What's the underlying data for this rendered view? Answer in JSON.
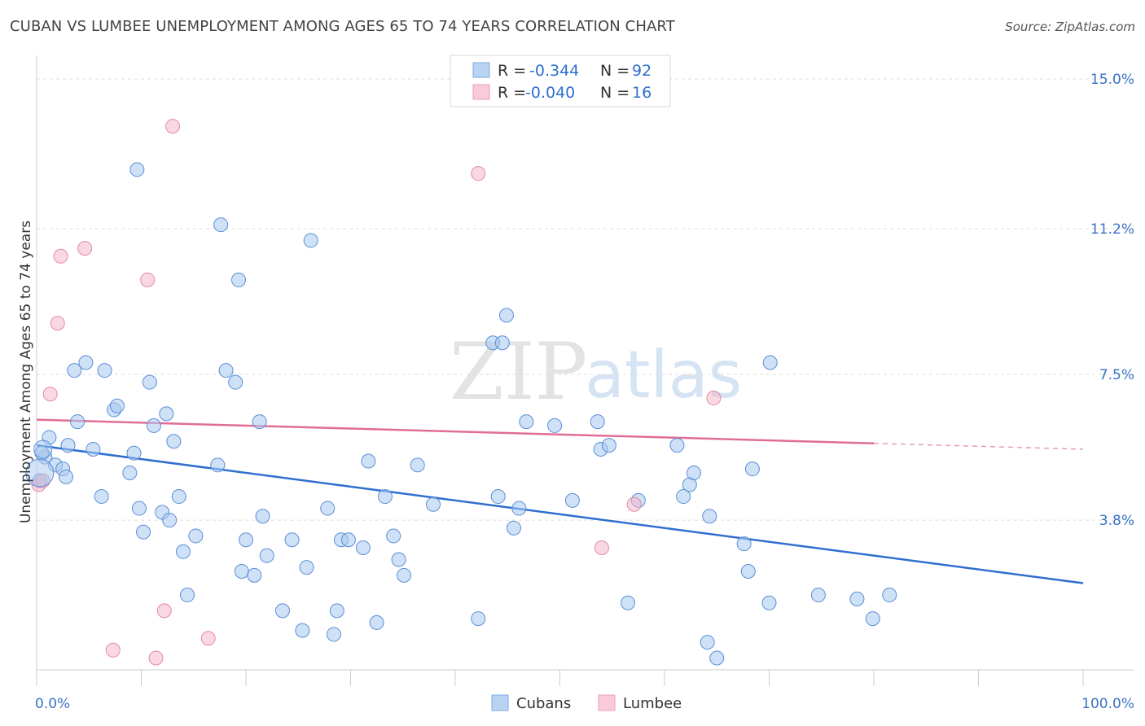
{
  "header": {
    "title": "CUBAN VS LUMBEE UNEMPLOYMENT AMONG AGES 65 TO 74 YEARS CORRELATION CHART",
    "source": "Source: ZipAtlas.com"
  },
  "legend": {
    "series": [
      {
        "r_label": "R = ",
        "r_value": "-0.344",
        "n_label": "N = ",
        "n_value": "92",
        "color": "#a8c8f0"
      },
      {
        "r_label": "R = ",
        "r_value": "-0.040",
        "n_label": "N = ",
        "n_value": "16",
        "color": "#f4b8cb"
      }
    ]
  },
  "bottom_legend": [
    {
      "label": "Cubans",
      "color": "#a8c8f0"
    },
    {
      "label": "Lumbee",
      "color": "#f4b8cb"
    }
  ],
  "watermark": {
    "zip": "ZIP",
    "atlas": "atlas"
  },
  "chart_data": {
    "type": "scatter",
    "title": "CUBAN VS LUMBEE UNEMPLOYMENT AMONG AGES 65 TO 74 YEARS CORRELATION CHART",
    "xlabel": "",
    "ylabel": "Unemployment Among Ages 65 to 74 years",
    "xlim": [
      0,
      100
    ],
    "ylim": [
      0,
      15
    ],
    "x_tick_labels": [
      "0.0%",
      "100.0%"
    ],
    "y_ticks": [
      3.8,
      7.5,
      11.2,
      15.0
    ],
    "y_tick_labels": [
      "3.8%",
      "7.5%",
      "11.2%",
      "15.0%"
    ],
    "grid": true,
    "series": [
      {
        "name": "Cubans",
        "color": "#a8c8f0",
        "stroke": "#5b8fd6",
        "trend": {
          "x": [
            0,
            100
          ],
          "y": [
            5.7,
            2.2
          ],
          "color": "#2f6fcf"
        },
        "points": [
          [
            0.3,
            4.8
          ],
          [
            0.8,
            5.4
          ],
          [
            1.2,
            5.9
          ],
          [
            1.8,
            5.2
          ],
          [
            2.5,
            5.1
          ],
          [
            2.8,
            4.9
          ],
          [
            3.0,
            5.7
          ],
          [
            3.6,
            7.6
          ],
          [
            4.7,
            7.8
          ],
          [
            5.4,
            5.6
          ],
          [
            3.9,
            6.3
          ],
          [
            6.5,
            7.6
          ],
          [
            6.2,
            4.4
          ],
          [
            7.4,
            6.6
          ],
          [
            7.7,
            6.7
          ],
          [
            8.9,
            5.0
          ],
          [
            9.3,
            5.5
          ],
          [
            9.6,
            12.7
          ],
          [
            9.8,
            4.1
          ],
          [
            10.2,
            3.5
          ],
          [
            10.8,
            7.3
          ],
          [
            11.2,
            6.2
          ],
          [
            12.0,
            4.0
          ],
          [
            12.4,
            6.5
          ],
          [
            12.7,
            3.8
          ],
          [
            13.1,
            5.8
          ],
          [
            13.6,
            4.4
          ],
          [
            14.0,
            3.0
          ],
          [
            14.4,
            1.9
          ],
          [
            15.2,
            3.4
          ],
          [
            17.3,
            5.2
          ],
          [
            17.6,
            11.3
          ],
          [
            18.1,
            7.6
          ],
          [
            19.0,
            7.3
          ],
          [
            19.3,
            9.9
          ],
          [
            19.6,
            2.5
          ],
          [
            20.0,
            3.3
          ],
          [
            20.8,
            2.4
          ],
          [
            21.3,
            6.3
          ],
          [
            21.6,
            3.9
          ],
          [
            22.0,
            2.9
          ],
          [
            23.5,
            1.5
          ],
          [
            24.4,
            3.3
          ],
          [
            25.4,
            1.0
          ],
          [
            25.8,
            2.6
          ],
          [
            26.2,
            10.9
          ],
          [
            27.8,
            4.1
          ],
          [
            28.4,
            0.9
          ],
          [
            28.7,
            1.5
          ],
          [
            29.1,
            3.3
          ],
          [
            29.8,
            3.3
          ],
          [
            31.2,
            3.1
          ],
          [
            31.7,
            5.3
          ],
          [
            32.5,
            1.2
          ],
          [
            33.3,
            4.4
          ],
          [
            34.1,
            3.4
          ],
          [
            34.6,
            2.8
          ],
          [
            35.1,
            2.4
          ],
          [
            36.4,
            5.2
          ],
          [
            37.9,
            4.2
          ],
          [
            42.2,
            1.3
          ],
          [
            43.6,
            8.3
          ],
          [
            44.1,
            4.4
          ],
          [
            44.5,
            8.3
          ],
          [
            44.9,
            9.0
          ],
          [
            45.6,
            3.6
          ],
          [
            46.1,
            4.1
          ],
          [
            46.8,
            6.3
          ],
          [
            49.5,
            6.2
          ],
          [
            51.2,
            4.3
          ],
          [
            53.6,
            6.3
          ],
          [
            53.9,
            5.6
          ],
          [
            54.7,
            5.7
          ],
          [
            56.5,
            1.7
          ],
          [
            57.5,
            4.3
          ],
          [
            61.2,
            5.7
          ],
          [
            61.8,
            4.4
          ],
          [
            62.4,
            4.7
          ],
          [
            62.8,
            5.0
          ],
          [
            64.1,
            0.7
          ],
          [
            64.3,
            3.9
          ],
          [
            65.0,
            0.3
          ],
          [
            67.6,
            3.2
          ],
          [
            68.0,
            2.5
          ],
          [
            68.4,
            5.1
          ],
          [
            70.1,
            7.8
          ],
          [
            70.0,
            1.7
          ],
          [
            74.7,
            1.9
          ],
          [
            78.4,
            1.8
          ],
          [
            79.9,
            1.3
          ],
          [
            81.5,
            1.9
          ],
          [
            0.5,
            5.5
          ]
        ]
      },
      {
        "name": "Lumbee",
        "color": "#f4b8cb",
        "stroke": "#e38aa6",
        "trend": {
          "x": [
            0,
            80
          ],
          "y": [
            6.35,
            5.75
          ],
          "dash_x": [
            80,
            100
          ],
          "dash_y": [
            5.75,
            5.6
          ],
          "color": "#e06d98"
        },
        "points": [
          [
            0.2,
            4.7
          ],
          [
            1.3,
            7.0
          ],
          [
            2.0,
            8.8
          ],
          [
            2.3,
            10.5
          ],
          [
            4.6,
            10.7
          ],
          [
            7.3,
            0.5
          ],
          [
            10.6,
            9.9
          ],
          [
            11.4,
            0.3
          ],
          [
            12.2,
            1.5
          ],
          [
            13.0,
            13.8
          ],
          [
            16.4,
            0.8
          ],
          [
            42.2,
            12.6
          ],
          [
            54.0,
            3.1
          ],
          [
            57.1,
            4.2
          ],
          [
            64.7,
            6.9
          ],
          [
            0.6,
            4.8
          ]
        ]
      }
    ]
  }
}
